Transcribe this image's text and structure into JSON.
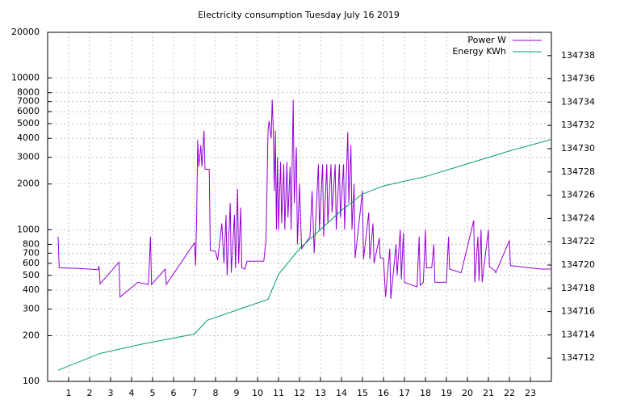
{
  "chart_data": {
    "type": "line",
    "title": "Electricity consumption Tuesday July 16 2019",
    "xlim": [
      0,
      24
    ],
    "xticks": [
      1,
      2,
      3,
      4,
      5,
      6,
      7,
      8,
      9,
      10,
      11,
      12,
      13,
      14,
      15,
      16,
      17,
      18,
      19,
      20,
      21,
      22,
      23
    ],
    "ylim": [
      100,
      20000
    ],
    "log_y": true,
    "yticks": [
      100,
      200,
      300,
      400,
      500,
      600,
      700,
      800,
      1000,
      2000,
      3000,
      4000,
      5000,
      6000,
      7000,
      8000,
      10000,
      20000
    ],
    "y2lim": [
      134710,
      134740
    ],
    "y2ticks": [
      134712,
      134714,
      134716,
      134718,
      134720,
      134722,
      134724,
      134726,
      134728,
      134730,
      134732,
      134734,
      134736,
      134738
    ],
    "grid": true,
    "legend": "top-right",
    "series": [
      {
        "name": "Power W",
        "color": "#9400d3",
        "axis": "y",
        "x": [
          0.5,
          0.55,
          1.5,
          2.4,
          2.45,
          2.5,
          3.4,
          3.45,
          4.3,
          4.8,
          4.9,
          4.95,
          5.6,
          5.65,
          7.0,
          7.05,
          7.1,
          7.15,
          7.2,
          7.3,
          7.35,
          7.45,
          7.5,
          7.7,
          7.75,
          8.0,
          8.1,
          8.3,
          8.4,
          8.5,
          8.55,
          8.7,
          8.75,
          8.9,
          8.95,
          9.05,
          9.1,
          9.2,
          9.25,
          9.4,
          9.5,
          10.3,
          10.4,
          10.45,
          10.5,
          10.55,
          10.65,
          10.7,
          10.75,
          10.8,
          10.85,
          10.9,
          10.95,
          11.0,
          11.1,
          11.15,
          11.25,
          11.3,
          11.4,
          11.45,
          11.55,
          11.6,
          11.7,
          11.75,
          11.85,
          11.9,
          12.0,
          12.1,
          12.5,
          12.6,
          12.7,
          12.9,
          12.95,
          13.1,
          13.15,
          13.3,
          13.35,
          13.5,
          13.55,
          13.7,
          13.75,
          13.9,
          13.95,
          14.1,
          14.15,
          14.3,
          14.35,
          14.45,
          14.5,
          14.6,
          14.65,
          15.0,
          15.05,
          15.3,
          15.35,
          15.5,
          15.55,
          15.8,
          15.85,
          16.0,
          16.1,
          16.3,
          16.35,
          16.6,
          16.65,
          16.8,
          16.85,
          16.95,
          17.0,
          17.6,
          17.7,
          17.75,
          17.9,
          18.0,
          18.05,
          18.3,
          18.4,
          18.45,
          19.0,
          19.1,
          19.15,
          19.7,
          20.3,
          20.35,
          20.5,
          20.55,
          20.65,
          20.7,
          21.0,
          21.05,
          21.2,
          21.3,
          21.35,
          22.0,
          22.05,
          23.5,
          24.0
        ],
        "values": [
          900,
          560,
          555,
          545,
          575,
          440,
          610,
          360,
          450,
          435,
          900,
          435,
          550,
          435,
          820,
          580,
          1200,
          3900,
          2600,
          3600,
          2600,
          4500,
          2500,
          2500,
          730,
          720,
          630,
          1100,
          600,
          1250,
          500,
          1500,
          520,
          1250,
          560,
          1850,
          600,
          1400,
          560,
          550,
          620,
          620,
          850,
          1800,
          4500,
          5200,
          4000,
          7200,
          4500,
          1800,
          4500,
          1000,
          3000,
          1000,
          2800,
          1100,
          2700,
          1000,
          2800,
          1200,
          2600,
          1000,
          7200,
          1500,
          3500,
          800,
          2000,
          750,
          900,
          1800,
          700,
          2700,
          1000,
          2700,
          900,
          2700,
          1100,
          2700,
          1300,
          2700,
          1000,
          2700,
          1200,
          2700,
          1000,
          4400,
          1500,
          3600,
          1000,
          2000,
          650,
          1800,
          640,
          1300,
          640,
          1100,
          600,
          880,
          650,
          650,
          360,
          750,
          350,
          800,
          500,
          1000,
          470,
          950,
          450,
          420,
          900,
          430,
          450,
          1000,
          560,
          560,
          800,
          450,
          450,
          900,
          550,
          520,
          1150,
          450,
          900,
          460,
          1000,
          450,
          1000,
          570,
          550,
          540,
          520,
          850,
          580,
          550,
          550
        ]
      },
      {
        "name": "Energy KWh",
        "color": "#009e73",
        "axis": "y2",
        "x": [
          0.5,
          2.5,
          4.5,
          7.0,
          7.6,
          10.5,
          11.0,
          12.0,
          14.0,
          15.0,
          16.0,
          18.0,
          20.0,
          22.0,
          24.0
        ],
        "values": [
          134710.96,
          134712.4,
          134713.2,
          134714.07,
          134715.25,
          134717.05,
          134719.2,
          134721.4,
          134724.7,
          134726.1,
          134726.8,
          134727.6,
          134728.7,
          134729.8,
          134730.8
        ]
      }
    ]
  }
}
